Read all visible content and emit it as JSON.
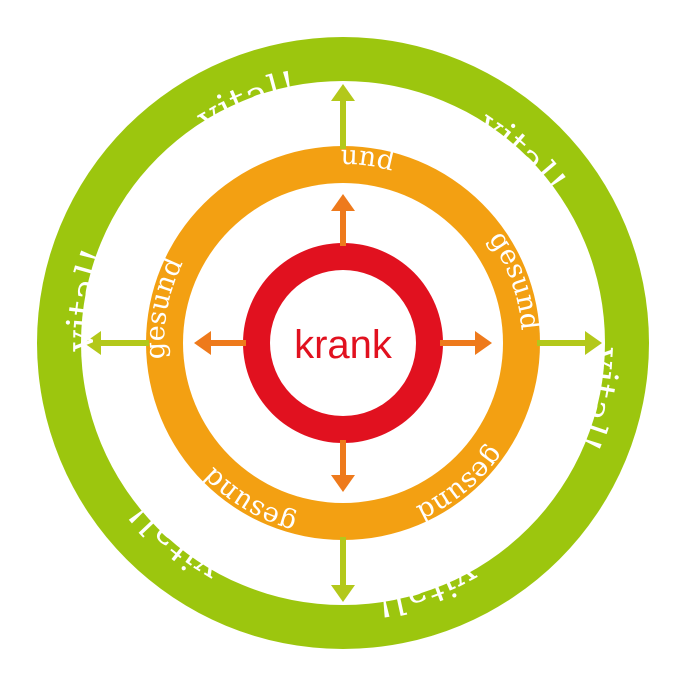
{
  "colors": {
    "outer_ring": "#9cc60e",
    "middle_ring": "#f3a012",
    "inner_ring": "#e1111f",
    "arrow_outer": "#b3c81a",
    "arrow_inner": "#ee7a1c",
    "ring_text": "#ffffff",
    "center_text": "#e1111f"
  },
  "center": {
    "label": "krank"
  },
  "middle_ring": {
    "labels": [
      "gesund",
      "gesund",
      "gesund",
      "gesund",
      "gesund"
    ]
  },
  "outer_ring": {
    "labels": [
      "vital!",
      "vital!",
      "vital!",
      "vital!",
      "vital!",
      "vital!"
    ]
  },
  "arrows": {
    "inner": [
      "up",
      "right",
      "down",
      "left"
    ],
    "outer": [
      "up",
      "right",
      "down",
      "left"
    ]
  }
}
